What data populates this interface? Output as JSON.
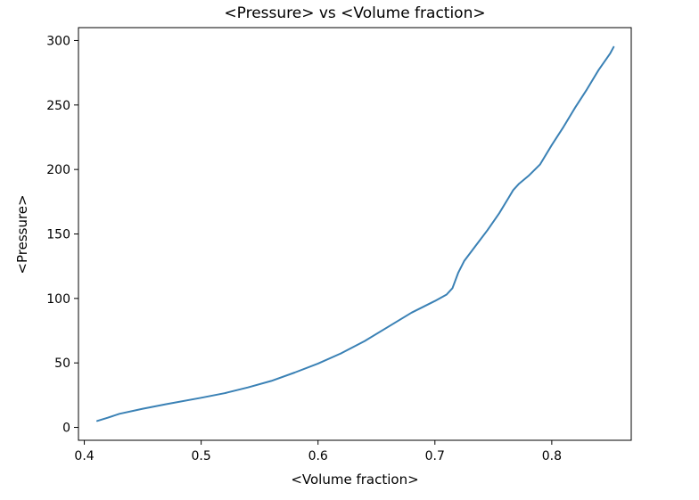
{
  "chart_data": {
    "type": "line",
    "title": "<Pressure> vs <Volume fraction>",
    "xlabel": "<Volume fraction>",
    "ylabel": "<Pressure>",
    "xlim": [
      0.395,
      0.868
    ],
    "ylim": [
      -10,
      310
    ],
    "xticks": [
      {
        "value": 0.4,
        "label": "0.4"
      },
      {
        "value": 0.5,
        "label": "0.5"
      },
      {
        "value": 0.6,
        "label": "0.6"
      },
      {
        "value": 0.7,
        "label": "0.7"
      },
      {
        "value": 0.8,
        "label": "0.8"
      }
    ],
    "yticks": [
      {
        "value": 0,
        "label": "0"
      },
      {
        "value": 50,
        "label": "50"
      },
      {
        "value": 100,
        "label": "100"
      },
      {
        "value": 150,
        "label": "150"
      },
      {
        "value": 200,
        "label": "200"
      },
      {
        "value": 250,
        "label": "250"
      },
      {
        "value": 300,
        "label": "300"
      }
    ],
    "grid": false,
    "series": [
      {
        "color": "#3a81b5",
        "x": [
          0.411,
          0.42,
          0.43,
          0.45,
          0.47,
          0.5,
          0.52,
          0.54,
          0.56,
          0.58,
          0.6,
          0.62,
          0.64,
          0.66,
          0.68,
          0.7,
          0.71,
          0.715,
          0.72,
          0.725,
          0.735,
          0.745,
          0.755,
          0.763,
          0.767,
          0.772,
          0.78,
          0.79,
          0.8,
          0.81,
          0.82,
          0.83,
          0.84,
          0.85,
          0.853
        ],
        "y": [
          5,
          7.5,
          10.5,
          14.5,
          18,
          23,
          26.5,
          31,
          36,
          42.5,
          49.5,
          57.5,
          67,
          78,
          89,
          98,
          103,
          108,
          120,
          129,
          141,
          153,
          166,
          178,
          184,
          189,
          195,
          204,
          219,
          233,
          248,
          262,
          277,
          290,
          295
        ]
      }
    ]
  }
}
